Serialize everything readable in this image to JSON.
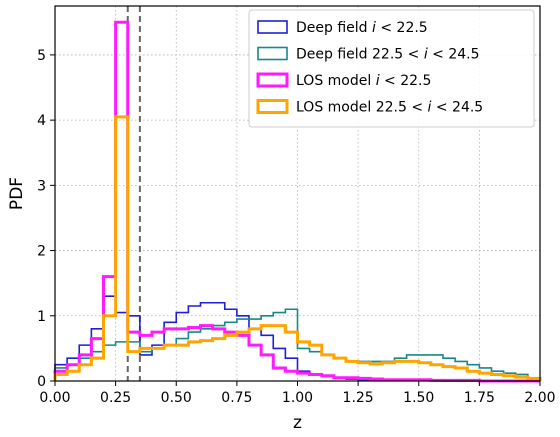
{
  "chart_data": {
    "type": "line",
    "xlabel": "z",
    "ylabel": "PDF",
    "xlim": [
      0.0,
      2.0
    ],
    "ylim": [
      0.0,
      5.75
    ],
    "x_ticks": [
      "0.00",
      "0.25",
      "0.50",
      "0.75",
      "1.00",
      "1.25",
      "1.50",
      "1.75",
      "2.00"
    ],
    "y_ticks": [
      "0",
      "1",
      "2",
      "3",
      "4",
      "5"
    ],
    "grid": true,
    "legend_position": "top-right",
    "vertical_lines": [
      0.3,
      0.35
    ],
    "bin_edges": [
      0.0,
      0.05,
      0.1,
      0.15,
      0.2,
      0.25,
      0.3,
      0.35,
      0.4,
      0.45,
      0.5,
      0.55,
      0.6,
      0.65,
      0.7,
      0.75,
      0.8,
      0.85,
      0.9,
      0.95,
      1.0,
      1.05,
      1.1,
      1.15,
      1.2,
      1.25,
      1.3,
      1.35,
      1.4,
      1.45,
      1.5,
      1.55,
      1.6,
      1.65,
      1.7,
      1.75,
      1.8,
      1.85,
      1.9,
      1.95,
      2.0
    ],
    "series": [
      {
        "name": "Deep field i < 22.5",
        "color": "#1f1fd6",
        "values": [
          0.25,
          0.35,
          0.55,
          0.8,
          1.3,
          1.05,
          1.0,
          0.4,
          0.55,
          0.9,
          1.05,
          1.15,
          1.2,
          1.2,
          1.1,
          1.0,
          0.8,
          0.7,
          0.5,
          0.35,
          0.15,
          0.1,
          0.07,
          0.05,
          0.03,
          0.02,
          0.02,
          0.02,
          0.01,
          0.01,
          0.01,
          0.01,
          0.0,
          0.0,
          0.0,
          0.0,
          0.0,
          0.0,
          0.0,
          0.0
        ]
      },
      {
        "name": "Deep field 22.5 < i < 24.5",
        "color": "#17888a",
        "values": [
          0.2,
          0.25,
          0.35,
          0.45,
          0.55,
          0.6,
          0.6,
          0.45,
          0.5,
          0.55,
          0.65,
          0.75,
          0.8,
          0.85,
          0.9,
          0.95,
          0.95,
          1.0,
          1.05,
          1.1,
          0.5,
          0.45,
          0.4,
          0.35,
          0.3,
          0.3,
          0.3,
          0.3,
          0.35,
          0.4,
          0.4,
          0.4,
          0.35,
          0.3,
          0.25,
          0.2,
          0.15,
          0.12,
          0.1,
          0.05
        ]
      },
      {
        "name": "LOS model i < 22.5",
        "color": "#ff1aff",
        "values": [
          0.15,
          0.25,
          0.4,
          0.65,
          1.6,
          5.5,
          0.75,
          0.7,
          0.75,
          0.8,
          0.8,
          0.82,
          0.85,
          0.8,
          0.75,
          0.7,
          0.55,
          0.4,
          0.2,
          0.15,
          0.12,
          0.1,
          0.08,
          0.05,
          0.05,
          0.04,
          0.03,
          0.02,
          0.02,
          0.02,
          0.02,
          0.01,
          0.01,
          0.01,
          0.01,
          0.0,
          0.0,
          0.0,
          0.0,
          0.0
        ]
      },
      {
        "name": "LOS model 22.5 < i < 24.5",
        "color": "#ffa500",
        "values": [
          0.1,
          0.15,
          0.25,
          0.35,
          1.0,
          4.05,
          0.45,
          0.5,
          0.5,
          0.55,
          0.55,
          0.6,
          0.62,
          0.65,
          0.7,
          0.75,
          0.8,
          0.85,
          0.85,
          0.75,
          0.6,
          0.55,
          0.4,
          0.35,
          0.3,
          0.28,
          0.26,
          0.28,
          0.3,
          0.3,
          0.28,
          0.25,
          0.22,
          0.2,
          0.15,
          0.12,
          0.1,
          0.08,
          0.06,
          0.04
        ]
      }
    ]
  },
  "legend": {
    "items": [
      {
        "prefix": "Deep field ",
        "lo": "",
        "var": "i",
        "hi": " < 22.5"
      },
      {
        "prefix": "Deep field ",
        "lo": "22.5 < ",
        "var": "i",
        "hi": " < 24.5"
      },
      {
        "prefix": "LOS model ",
        "lo": "",
        "var": "i",
        "hi": " < 22.5"
      },
      {
        "prefix": "LOS model ",
        "lo": "22.5 < ",
        "var": "i",
        "hi": " < 24.5"
      }
    ]
  }
}
